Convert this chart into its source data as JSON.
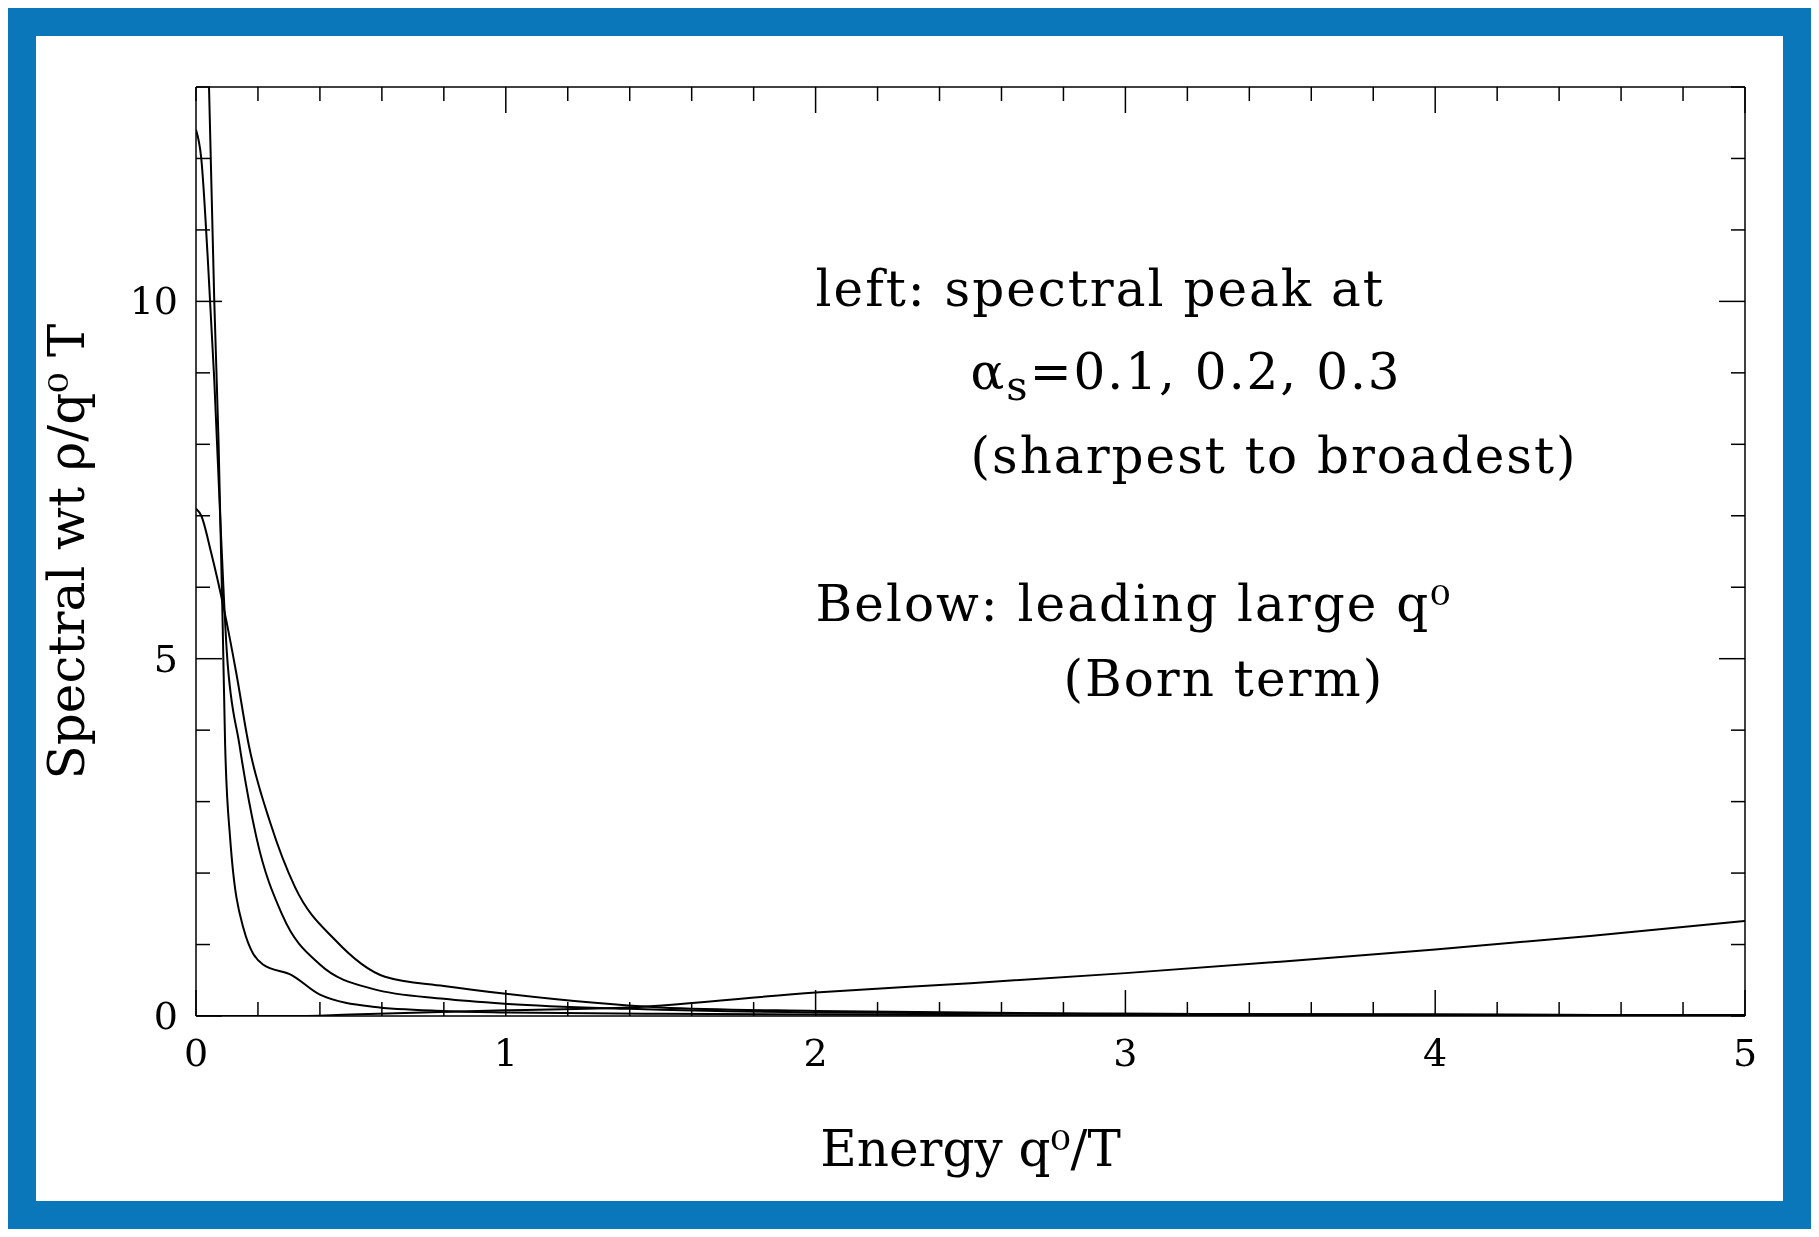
{
  "chart_data": {
    "type": "line",
    "xlabel": "Energy q⁰/T",
    "ylabel": "Spectral wt ρ/q⁰ T",
    "annotations": [
      "left: spectral peak at",
      "α$_{s}$=0.1, 0.2, 0.3",
      "(sharpest to broadest)",
      "Below: leading large q⁰",
      "(Born term)"
    ],
    "xlim": [
      0,
      5
    ],
    "ylim": [
      0,
      13
    ],
    "xticks": [
      0,
      {
        "value": 0.2,
        "label": null
      },
      {
        "value": 0.4,
        "label": null
      },
      {
        "value": 0.6,
        "label": null
      },
      {
        "value": 0.8,
        "label": null
      },
      1,
      {
        "value": 1.2,
        "label": null
      },
      {
        "value": 1.4,
        "label": null
      },
      {
        "value": 1.6,
        "label": null
      },
      {
        "value": 1.8,
        "label": null
      },
      2,
      {
        "value": 2.2,
        "label": null
      },
      {
        "value": 2.4,
        "label": null
      },
      {
        "value": 2.6,
        "label": null
      },
      {
        "value": 2.8,
        "label": null
      },
      3,
      {
        "value": 3.2,
        "label": null
      },
      {
        "value": 3.4,
        "label": null
      },
      {
        "value": 3.6,
        "label": null
      },
      {
        "value": 3.8,
        "label": null
      },
      4,
      {
        "value": 4.2,
        "label": null
      },
      {
        "value": 4.4,
        "label": null
      },
      {
        "value": 4.6,
        "label": null
      },
      {
        "value": 4.8,
        "label": null
      },
      5
    ],
    "yticks": [
      0,
      {
        "value": 1,
        "label": null
      },
      {
        "value": 2,
        "label": null
      },
      {
        "value": 3,
        "label": null
      },
      {
        "value": 4,
        "label": null
      },
      5,
      {
        "value": 6,
        "label": null
      },
      {
        "value": 7,
        "label": null
      },
      {
        "value": 8,
        "label": null
      },
      {
        "value": 9,
        "label": null
      },
      10,
      {
        "value": 11,
        "label": null
      },
      {
        "value": 12,
        "label": null
      },
      {
        "value": 13,
        "label": null
      }
    ],
    "marker": "none",
    "line_style": "solid",
    "series": [
      {
        "color": "#000000",
        "x": [
          0.042,
          0.059,
          0.073,
          0.086,
          0.094,
          0.11,
          0.153,
          0.216,
          0.31,
          0.4,
          0.57,
          0.8,
          1,
          1.5,
          2,
          3,
          4,
          5
        ],
        "values": [
          13,
          10,
          8,
          5.5,
          3.8,
          2.5,
          1.23,
          0.72,
          0.57,
          0.3,
          0.13,
          0.07,
          0.05,
          0.03,
          0.02,
          0.01,
          0.01,
          0.01
        ]
      },
      {
        "color": "#000000",
        "x": [
          0,
          0.017,
          0.038,
          0.059,
          0.08,
          0.1,
          0.14,
          0.195,
          0.28,
          0.4,
          0.57,
          0.8,
          1,
          1.4,
          2,
          3,
          4,
          5
        ],
        "values": [
          12.4,
          12,
          10.6,
          8.9,
          6.8,
          5.06,
          3.8,
          2.5,
          1.4,
          0.72,
          0.38,
          0.24,
          0.17,
          0.1,
          0.05,
          0.03,
          0.02,
          0.01
        ]
      },
      {
        "color": "#000000",
        "x": [
          0,
          0.017,
          0.048,
          0.09,
          0.13,
          0.17,
          0.24,
          0.32,
          0.45,
          0.61,
          0.8,
          1,
          1.5,
          2,
          3,
          4,
          5
        ],
        "values": [
          7.1,
          7,
          6.5,
          5.7,
          4.8,
          3.8,
          2.7,
          1.8,
          1.06,
          0.55,
          0.42,
          0.31,
          0.12,
          0.07,
          0.03,
          0.02,
          0.01
        ]
      },
      {
        "color": "#000000",
        "x": [
          0,
          0.3,
          0.5,
          1,
          1.4,
          2,
          2.5,
          3,
          3.5,
          4,
          4.5,
          5
        ],
        "values": [
          0,
          0,
          0.02,
          0.08,
          0.12,
          0.33,
          0.46,
          0.6,
          0.76,
          0.93,
          1.12,
          1.33
        ]
      }
    ]
  }
}
